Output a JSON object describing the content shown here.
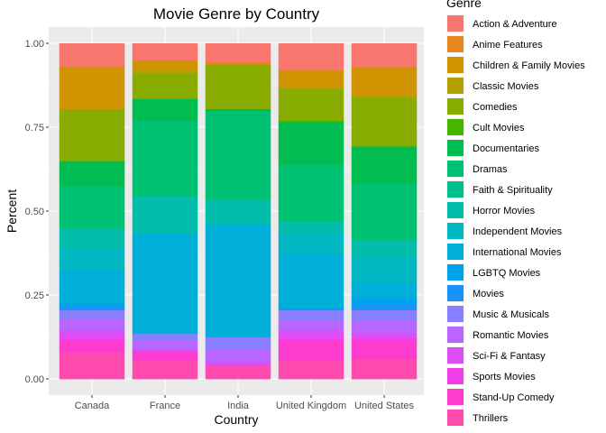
{
  "chart_data": {
    "type": "bar",
    "stacked": true,
    "position": "fill",
    "title": "Movie Genre by Country",
    "xlabel": "Country",
    "ylabel": "Percent",
    "ylim": [
      0,
      1
    ],
    "yticks": [
      "0.00",
      "0.25",
      "0.50",
      "0.75",
      "1.00"
    ],
    "grid": true,
    "legend_title": "Genre",
    "legend_position": "right",
    "categories": [
      "Canada",
      "France",
      "India",
      "United Kingdom",
      "United States"
    ],
    "series": [
      {
        "name": "Action & Adventure",
        "color": "#F8766D",
        "values": [
          0.07,
          0.05,
          0.055,
          0.08,
          0.07
        ]
      },
      {
        "name": "Anime Features",
        "color": "#E7851E",
        "values": [
          0.0,
          0.0,
          0.005,
          0.0,
          0.0
        ]
      },
      {
        "name": "Children & Family Movies",
        "color": "#D09400",
        "values": [
          0.125,
          0.03,
          0.0,
          0.05,
          0.085
        ]
      },
      {
        "name": "Classic Movies",
        "color": "#B2A100",
        "values": [
          0.0,
          0.01,
          0.005,
          0.005,
          0.005
        ]
      },
      {
        "name": "Comedies",
        "color": "#89AC00",
        "values": [
          0.155,
          0.075,
          0.13,
          0.095,
          0.145
        ]
      },
      {
        "name": "Cult Movies",
        "color": "#45B500",
        "values": [
          0.0,
          0.0,
          0.0,
          0.005,
          0.0
        ]
      },
      {
        "name": "Documentaries",
        "color": "#00BC51",
        "values": [
          0.075,
          0.065,
          0.005,
          0.125,
          0.11
        ]
      },
      {
        "name": "Dramas",
        "color": "#00C071",
        "values": [
          0.125,
          0.225,
          0.265,
          0.17,
          0.165
        ]
      },
      {
        "name": "Faith & Spirituality",
        "color": "#00C08E",
        "values": [
          0.0,
          0.0,
          0.0,
          0.0,
          0.005
        ]
      },
      {
        "name": "Horror Movies",
        "color": "#00BEA9",
        "values": [
          0.06,
          0.11,
          0.07,
          0.035,
          0.05
        ]
      },
      {
        "name": "Independent Movies",
        "color": "#00B8C2",
        "values": [
          0.065,
          0.0,
          0.005,
          0.06,
          0.075
        ]
      },
      {
        "name": "International Movies",
        "color": "#00AFD7",
        "values": [
          0.1,
          0.3,
          0.335,
          0.165,
          0.045
        ]
      },
      {
        "name": "LGBTQ Movies",
        "color": "#00A3E9",
        "values": [
          0.005,
          0.0,
          0.0,
          0.0,
          0.02
        ]
      },
      {
        "name": "Movies",
        "color": "#1993F6",
        "values": [
          0.015,
          0.0,
          0.0,
          0.005,
          0.015
        ]
      },
      {
        "name": "Music & Musicals",
        "color": "#8A7FFE",
        "values": [
          0.025,
          0.02,
          0.035,
          0.03,
          0.03
        ]
      },
      {
        "name": "Romantic Movies",
        "color": "#B866FF",
        "values": [
          0.035,
          0.025,
          0.04,
          0.03,
          0.04
        ]
      },
      {
        "name": "Sci-Fi & Fantasy",
        "color": "#DC4DF7",
        "values": [
          0.025,
          0.005,
          0.01,
          0.025,
          0.015
        ]
      },
      {
        "name": "Sports Movies",
        "color": "#F13EE6",
        "values": [
          0.005,
          0.005,
          0.0,
          0.005,
          0.005
        ]
      },
      {
        "name": "Stand-Up Comedy",
        "color": "#FE3BCF",
        "values": [
          0.035,
          0.025,
          0.0,
          0.06,
          0.055
        ]
      },
      {
        "name": "Thrillers",
        "color": "#FF4AAE",
        "values": [
          0.08,
          0.055,
          0.04,
          0.055,
          0.06
        ]
      }
    ]
  }
}
